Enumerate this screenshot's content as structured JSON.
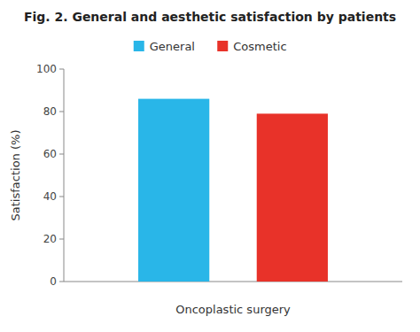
{
  "chart_data": {
    "type": "bar",
    "title": "Fig. 2. General and aesthetic satisfaction by patients",
    "xlabel": "Oncoplastic surgery",
    "ylabel": "Satisfaction (%)",
    "categories": [
      null
    ],
    "series": [
      {
        "name": "General",
        "color": "#29B6E8",
        "values": [
          86
        ]
      },
      {
        "name": "Cosmetic",
        "color": "#E83229",
        "values": [
          79
        ]
      }
    ],
    "ylim": [
      0,
      100
    ],
    "yticks": [
      0,
      20,
      40,
      60,
      80,
      100
    ],
    "grid": false,
    "legend": "top",
    "tick_labels": "y"
  }
}
